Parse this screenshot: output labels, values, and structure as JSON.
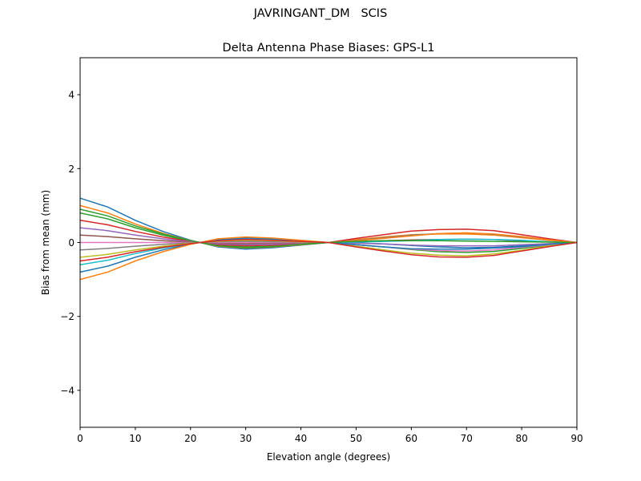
{
  "suptitle": "JAVRINGANT_DM   SCIS",
  "chart_data": {
    "type": "line",
    "title": "Delta Antenna Phase Biases: GPS-L1",
    "xlabel": "Elevation angle (degrees)",
    "ylabel": "Bias from mean (mm)",
    "xlim": [
      0,
      90
    ],
    "ylim": [
      -5,
      5
    ],
    "xticks": [
      0,
      10,
      20,
      30,
      40,
      50,
      60,
      70,
      80,
      90
    ],
    "yticks": [
      -4,
      -2,
      0,
      2,
      4
    ],
    "ytick_labels": [
      "−4",
      "−2",
      "0",
      "2",
      "4"
    ],
    "grid": false,
    "legend": "none",
    "colors": [
      "#1f77b4",
      "#ff7f0e",
      "#2ca02c",
      "#d62728",
      "#9467bd",
      "#8c564b",
      "#e377c2",
      "#7f7f7f",
      "#bcbd22",
      "#17becf"
    ],
    "x": [
      0,
      5,
      10,
      15,
      20,
      25,
      30,
      35,
      40,
      45,
      50,
      55,
      60,
      65,
      70,
      75,
      80,
      85,
      90
    ],
    "series": [
      {
        "values": [
          1.2,
          0.96,
          0.6,
          0.3,
          0.06,
          -0.12,
          -0.18,
          -0.14,
          -0.07,
          0,
          -0.01,
          -0.04,
          -0.08,
          -0.12,
          -0.14,
          -0.13,
          -0.09,
          -0.04,
          0
        ]
      },
      {
        "values": [
          1,
          0.8,
          0.5,
          0.25,
          0.05,
          -0.1,
          -0.15,
          -0.12,
          -0.06,
          0,
          0.08,
          0.15,
          0.21,
          0.23,
          0.23,
          0.2,
          0.13,
          0.06,
          0
        ]
      },
      {
        "values": [
          0.8,
          0.64,
          0.4,
          0.2,
          0.04,
          -0.08,
          -0.12,
          -0.1,
          -0.05,
          0,
          -0.06,
          -0.12,
          -0.19,
          -0.25,
          -0.27,
          -0.24,
          -0.16,
          -0.07,
          0
        ]
      },
      {
        "values": [
          0.6,
          0.48,
          0.3,
          0.15,
          0.03,
          -0.06,
          -0.09,
          -0.07,
          -0.04,
          0,
          0.11,
          0.21,
          0.31,
          0.35,
          0.36,
          0.32,
          0.21,
          0.1,
          0
        ]
      },
      {
        "values": [
          0.4,
          0.32,
          0.2,
          0.1,
          0.02,
          -0.04,
          -0.06,
          -0.05,
          -0.02,
          0,
          -0.02,
          -0.04,
          -0.07,
          -0.09,
          -0.09,
          -0.09,
          -0.06,
          -0.03,
          0
        ]
      },
      {
        "values": [
          0.2,
          0.16,
          0.1,
          0.05,
          0.01,
          -0.02,
          -0.03,
          -0.02,
          -0.01,
          0,
          0.03,
          0.05,
          0.07,
          0.08,
          0.09,
          0.08,
          0.04,
          0.02,
          0
        ]
      },
      {
        "values": [
          0,
          0,
          0,
          0,
          0,
          0,
          0,
          0,
          0,
          0,
          -0.06,
          -0.12,
          -0.18,
          -0.22,
          -0.23,
          -0.2,
          -0.13,
          -0.06,
          0
        ]
      },
      {
        "values": [
          -0.2,
          -0.16,
          -0.1,
          -0.05,
          -0.01,
          0.02,
          0.03,
          0.02,
          0.01,
          0,
          0.06,
          0.13,
          0.2,
          0.24,
          0.26,
          0.22,
          0.15,
          0.07,
          0
        ]
      },
      {
        "values": [
          -0.4,
          -0.32,
          -0.2,
          -0.1,
          -0.02,
          0.04,
          0.06,
          0.05,
          0.02,
          0,
          -0.1,
          -0.2,
          -0.29,
          -0.34,
          -0.36,
          -0.31,
          -0.21,
          -0.09,
          0
        ]
      },
      {
        "values": [
          -0.6,
          -0.48,
          -0.3,
          -0.15,
          -0.03,
          0.06,
          0.09,
          0.07,
          0.04,
          0,
          0.01,
          0.03,
          0.05,
          0.08,
          0.09,
          0.08,
          0.06,
          0.02,
          0
        ]
      },
      {
        "values": [
          -0.8,
          -0.64,
          -0.4,
          -0.2,
          -0.04,
          0.08,
          0.12,
          0.1,
          0.05,
          0,
          -0.06,
          -0.12,
          -0.17,
          -0.18,
          -0.18,
          -0.15,
          -0.11,
          -0.05,
          0
        ]
      },
      {
        "values": [
          -1,
          -0.8,
          -0.5,
          -0.25,
          -0.05,
          0.1,
          0.15,
          0.12,
          0.06,
          0,
          0.05,
          0.11,
          0.18,
          0.24,
          0.26,
          0.23,
          0.16,
          0.07,
          0
        ]
      },
      {
        "values": [
          0.9,
          0.72,
          0.45,
          0.23,
          0.05,
          -0.09,
          -0.14,
          -0.11,
          -0.05,
          0,
          0.03,
          0.05,
          0.05,
          0.05,
          0.04,
          0.03,
          0.02,
          0.01,
          0
        ]
      },
      {
        "values": [
          -0.5,
          -0.4,
          -0.25,
          -0.13,
          -0.03,
          0.05,
          0.08,
          0.06,
          0.03,
          0,
          -0.12,
          -0.23,
          -0.33,
          -0.39,
          -0.4,
          -0.35,
          -0.23,
          -0.11,
          0
        ]
      }
    ]
  }
}
